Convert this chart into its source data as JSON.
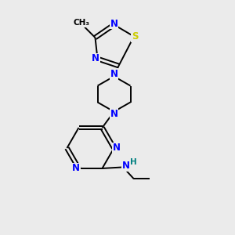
{
  "background_color": "#ebebeb",
  "bond_color": "#000000",
  "N_color": "#0000ff",
  "S_color": "#cccc00",
  "H_color": "#008080",
  "C_color": "#000000",
  "figsize": [
    3.0,
    3.0
  ],
  "dpi": 100,
  "xlim": [
    0,
    10
  ],
  "ylim": [
    0,
    10
  ],
  "lw": 1.4,
  "fs": 8.5,
  "fs_small": 7.5
}
